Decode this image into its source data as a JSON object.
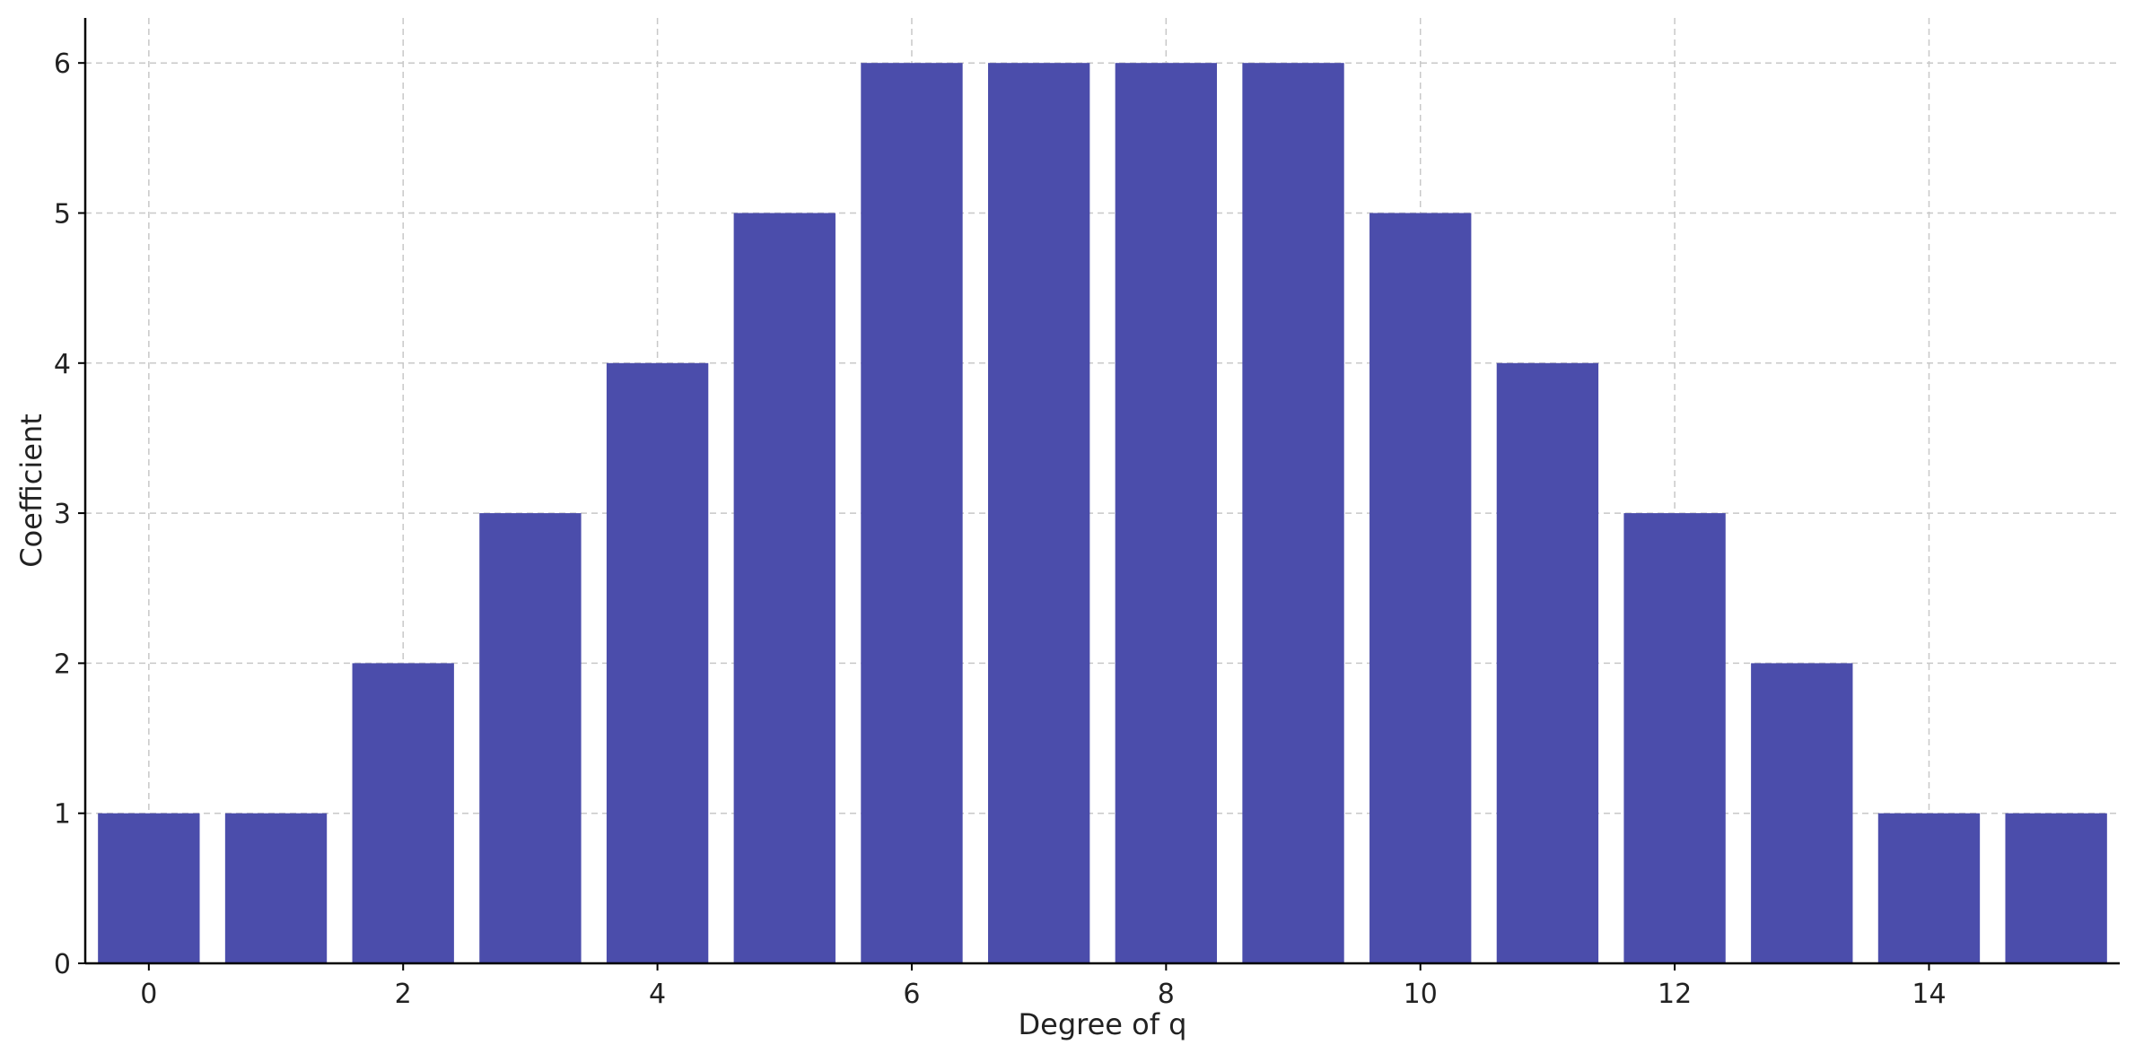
{
  "chart_data": {
    "type": "bar",
    "categories": [
      0,
      1,
      2,
      3,
      4,
      5,
      6,
      7,
      8,
      9,
      10,
      11,
      12,
      13,
      14,
      15
    ],
    "values": [
      1,
      1,
      2,
      3,
      4,
      5,
      6,
      6,
      6,
      6,
      5,
      4,
      3,
      2,
      1,
      1
    ],
    "title": "",
    "xlabel": "Degree of q",
    "ylabel": "Coefficient",
    "xlim": [
      -0.5,
      15.5
    ],
    "ylim": [
      0,
      6.3
    ],
    "xticks": [
      0,
      2,
      4,
      6,
      8,
      10,
      12,
      14
    ],
    "yticks": [
      0,
      1,
      2,
      3,
      4,
      5,
      6
    ],
    "bar_color": "#4b4dab",
    "grid": true,
    "legend": "none"
  }
}
